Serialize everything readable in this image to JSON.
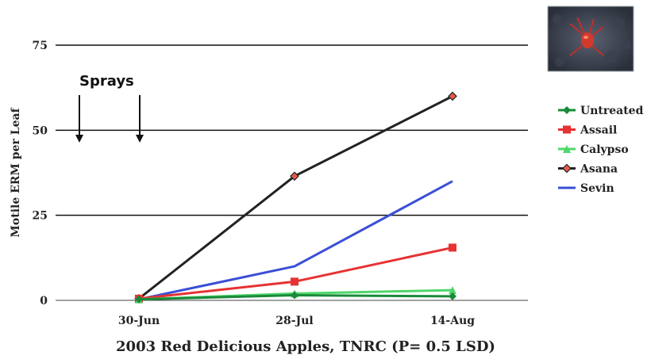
{
  "chart_data": {
    "type": "line",
    "title": "",
    "xlabel": "2003 Red Delicious Apples, TNRC  (P= 0.5 LSD)",
    "ylabel": "Motile ERM per Leaf",
    "categories": [
      "30-Jun",
      "28-Jul",
      "14-Aug"
    ],
    "ylim": [
      0,
      75
    ],
    "yticks": [
      0,
      25,
      50,
      75
    ],
    "grid": true,
    "legend_position": "right",
    "annotation": {
      "text": "Sprays",
      "arrows_at": [
        "before 30-Jun",
        "30-Jun"
      ]
    },
    "series": [
      {
        "name": "Untreated",
        "color": "#1a8a3a",
        "marker": "diamond",
        "values": [
          0.3,
          1.5,
          1.2
        ]
      },
      {
        "name": "Assail",
        "color": "#e63232",
        "marker": "square",
        "values": [
          0.5,
          5.5,
          15.5
        ]
      },
      {
        "name": "Calypso",
        "color": "#4fd66a",
        "marker": "triangle",
        "values": [
          0.3,
          2.0,
          3.0
        ]
      },
      {
        "name": "Asana",
        "color": "#222222",
        "marker": "diamond-open",
        "values": [
          0.5,
          36.5,
          60
        ]
      },
      {
        "name": "Sevin",
        "color": "#3a4fd6",
        "marker": "none",
        "values": [
          0.3,
          10,
          35
        ]
      }
    ]
  },
  "photo": {
    "icon": "mite-photo"
  }
}
